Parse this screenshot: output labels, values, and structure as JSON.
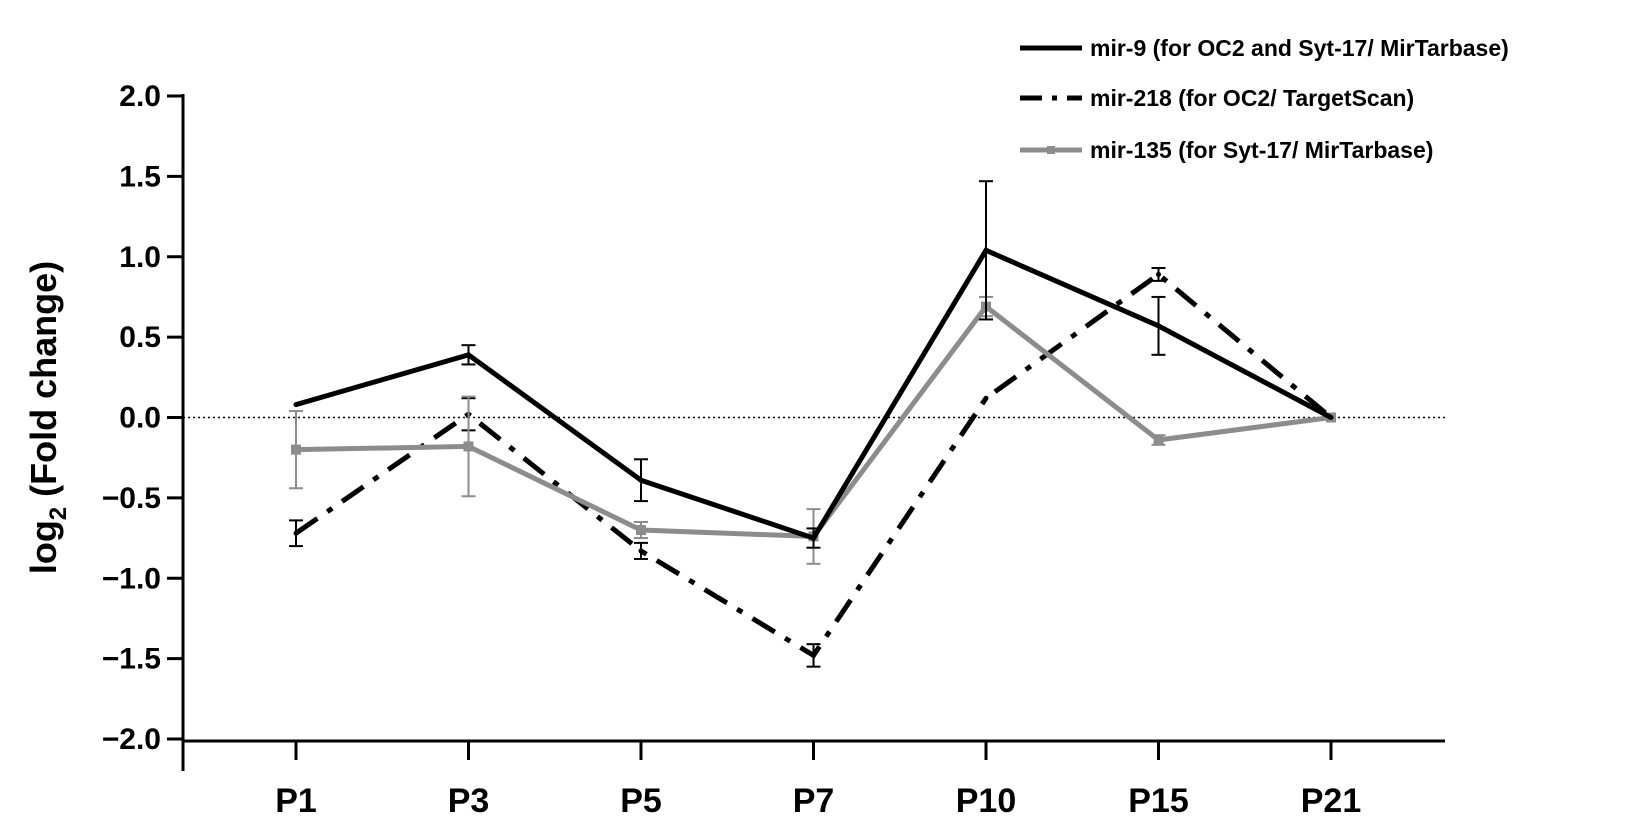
{
  "chart_data": {
    "type": "line",
    "title": "",
    "xlabel": "",
    "ylabel": {
      "prefix": "log",
      "subscript": "2",
      "suffix": " (Fold change)"
    },
    "categories": [
      "P1",
      "P3",
      "P5",
      "P7",
      "P10",
      "P15",
      "P21"
    ],
    "ylim": [
      -2.0,
      2.0
    ],
    "yticks": [
      "-2.0",
      "-1.5",
      "-1.0",
      "-0.5",
      "0.0",
      "0.5",
      "1.0",
      "1.5",
      "2.0"
    ],
    "reference_line": 0,
    "legend_position": "top-right",
    "series": [
      {
        "name": "mir-9 (for OC2 and Syt-17/ MirTarbase)",
        "style": "solid",
        "color": "#000000",
        "values": [
          0.08,
          0.39,
          -0.39,
          -0.75,
          1.04,
          0.57,
          0.0
        ],
        "errors": [
          0.0,
          0.06,
          0.13,
          0.06,
          0.43,
          0.18,
          0.0
        ]
      },
      {
        "name": "mir-218 (for OC2/ TargetScan)",
        "style": "dashdot",
        "color": "#000000",
        "values": [
          -0.72,
          0.02,
          -0.83,
          -1.48,
          0.12,
          0.89,
          0.0
        ],
        "errors": [
          0.08,
          0.1,
          0.05,
          0.07,
          0.0,
          0.04,
          0.0
        ]
      },
      {
        "name": "mir-135 (for Syt-17/ MirTarbase)",
        "style": "solid",
        "color": "#8c8c8c",
        "values": [
          -0.2,
          -0.18,
          -0.7,
          -0.74,
          0.69,
          -0.14,
          0.0
        ],
        "errors": [
          0.24,
          0.31,
          0.05,
          0.17,
          0.06,
          0.03,
          0.0
        ]
      }
    ]
  }
}
